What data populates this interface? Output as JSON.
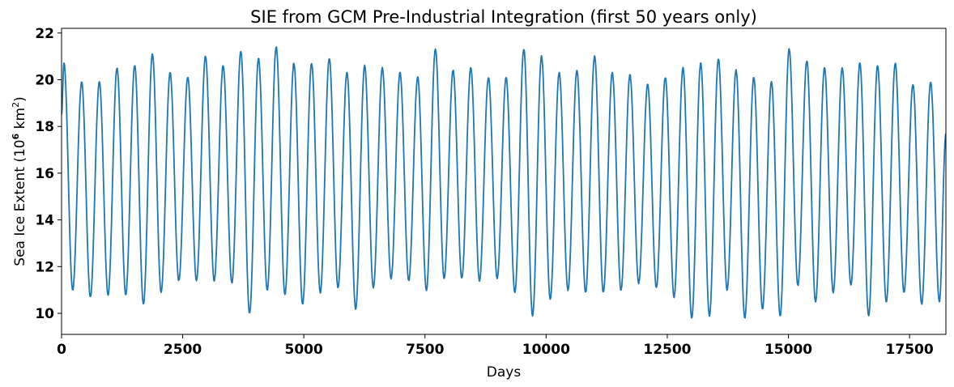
{
  "chart_data": {
    "type": "line",
    "title": "SIE from GCM Pre-Industrial Integration (first 50 years only)",
    "xlabel": "Days",
    "ylabel_prefix": "Sea Ice Extent (10",
    "ylabel_exponent": "6",
    "ylabel_suffix": " km",
    "ylabel_unit_exponent": "2",
    "ylabel_close": ")",
    "xlim": [
      0,
      18250
    ],
    "ylim": [
      9.1,
      22.2
    ],
    "xticks": [
      0,
      2500,
      5000,
      7500,
      10000,
      12500,
      15000,
      17500
    ],
    "xtick_labels": [
      "0",
      "2500",
      "5000",
      "7500",
      "10000",
      "12500",
      "15000",
      "17500"
    ],
    "yticks": [
      10,
      12,
      14,
      16,
      18,
      20,
      22
    ],
    "ytick_labels": [
      "10",
      "12",
      "14",
      "16",
      "18",
      "20",
      "22"
    ],
    "grid": false,
    "line_color": "#1f77b4",
    "series": [
      {
        "period_days": 365,
        "annual_maxima": [
          20.7,
          19.9,
          19.9,
          20.5,
          20.6,
          21.1,
          20.3,
          20.1,
          21.0,
          20.6,
          21.2,
          20.9,
          21.4,
          20.7,
          20.7,
          20.9,
          20.3,
          20.6,
          20.5,
          20.3,
          20.1,
          21.3,
          20.4,
          20.5,
          20.1,
          20.1,
          21.3,
          21.0,
          20.3,
          20.4,
          21.0,
          20.3,
          20.2,
          19.8,
          20.1,
          20.5,
          20.7,
          20.9,
          20.4,
          20.1,
          19.9,
          21.3,
          20.8,
          20.5,
          20.5,
          20.7,
          20.6,
          20.7,
          19.8,
          19.9
        ],
        "annual_minima": [
          11.0,
          10.7,
          10.8,
          10.8,
          10.4,
          10.9,
          11.4,
          11.4,
          11.4,
          11.3,
          10.0,
          11.0,
          10.8,
          10.4,
          10.9,
          11.1,
          10.2,
          11.1,
          11.5,
          11.4,
          11.0,
          11.5,
          11.5,
          11.4,
          11.5,
          10.9,
          9.9,
          10.6,
          11.0,
          10.9,
          10.9,
          11.0,
          11.3,
          11.1,
          10.7,
          9.8,
          9.9,
          11.0,
          9.8,
          10.2,
          9.9,
          11.2,
          10.5,
          10.9,
          11.2,
          9.9,
          10.5,
          10.9,
          10.4,
          10.5
        ],
        "start_value": 18.5,
        "end_value": 17.7
      }
    ]
  }
}
